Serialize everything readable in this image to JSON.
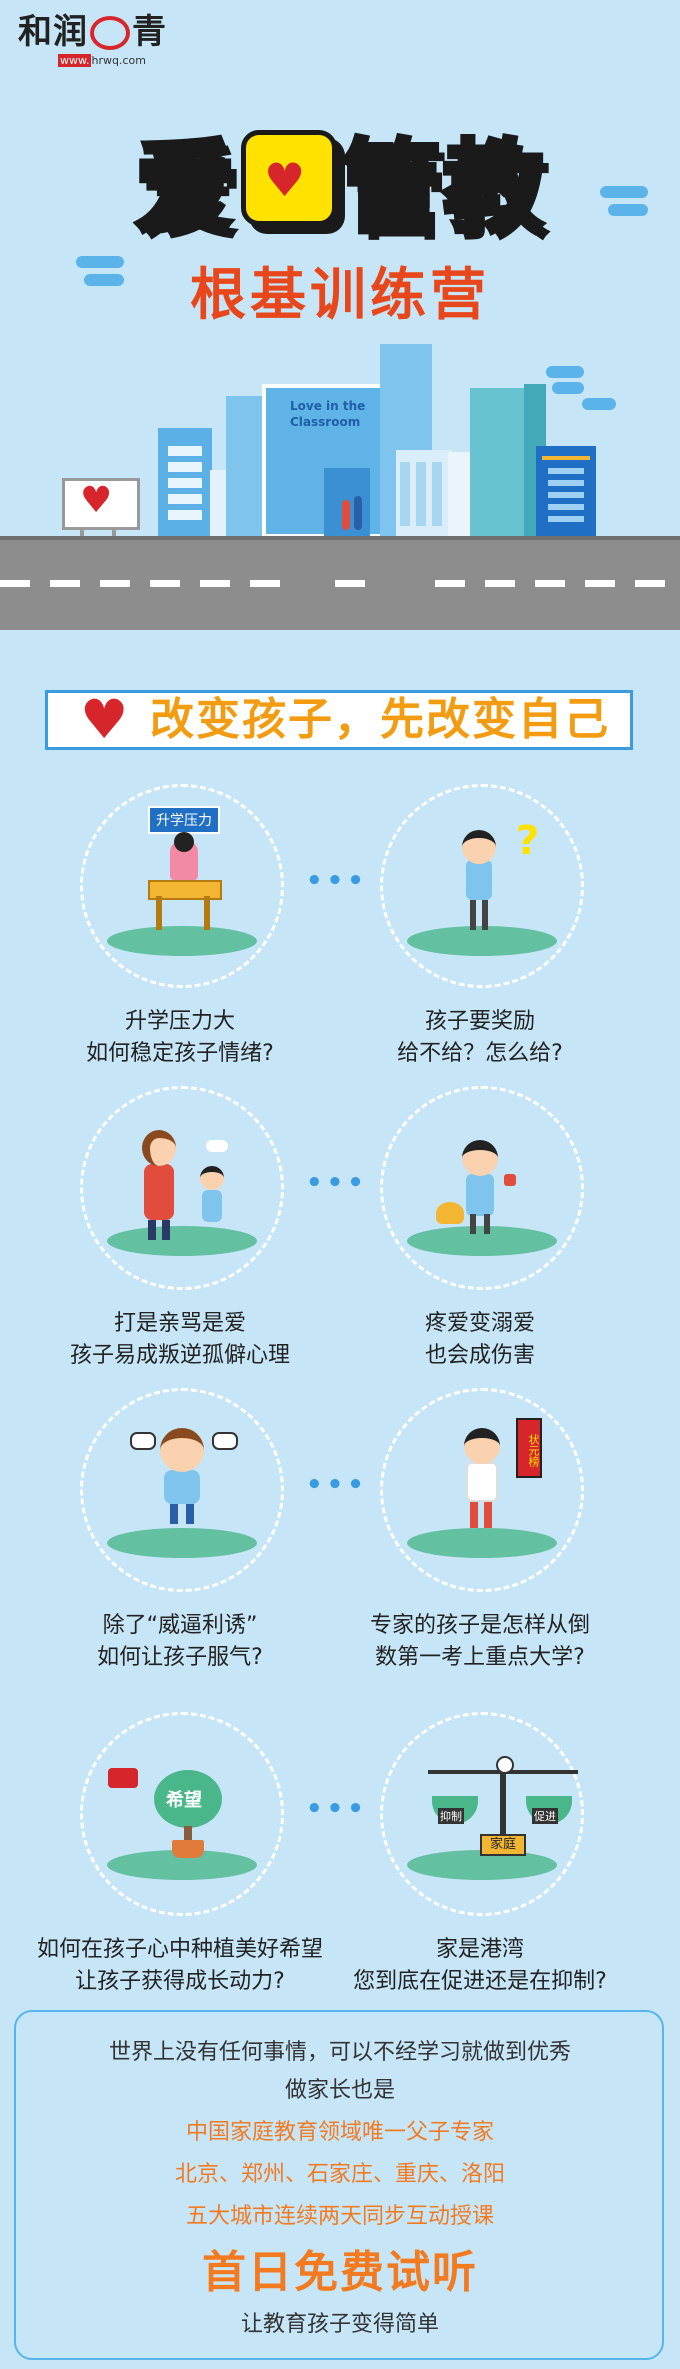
{
  "logo": {
    "brand_left": "和润",
    "brand_right": "青",
    "url_prefix": "www.",
    "url_rest": "hrwq.com"
  },
  "hero": {
    "title": "爱",
    "title_rest": "管教",
    "subtitle": "根基训练营"
  },
  "city": {
    "sign_text_1": "Love in the",
    "sign_text_2": "Classroom"
  },
  "slogan": {
    "text": "改变孩子，先改变自己"
  },
  "topics": [
    {
      "tag": "升学压力",
      "line1": "升学压力大",
      "line2": "如何稳定孩子情绪?"
    },
    {
      "line1": "孩子要奖励",
      "line2": "给不给？怎么给?"
    },
    {
      "line1": "打是亲骂是爱",
      "line2": "孩子易成叛逆孤僻心理"
    },
    {
      "line1": "疼爱变溺爱",
      "line2": "也会成伤害"
    },
    {
      "line1": "除了“威逼利诱”",
      "line2": "如何让孩子服气?"
    },
    {
      "line1": "专家的孩子是怎样从倒",
      "line2": "数第一考上重点大学?",
      "banner": "状元榜"
    },
    {
      "line1": "如何在孩子心中种植美好希望",
      "line2": "让孩子获得成长动力?",
      "tree_label": "希望"
    },
    {
      "line1": "家是港湾",
      "line2": "您到底在促进还是在抑制?",
      "scale_left": "抑制",
      "scale_right": "促进",
      "scale_base": "家庭"
    }
  ],
  "dots_text": "•••",
  "question_mark": "?",
  "closing": {
    "line1": "世界上没有任何事情，可以不经学习就做到优秀",
    "line2": "做家长也是",
    "line3": "中国家庭教育领域唯一父子专家",
    "line4": "北京、郑州、石家庄、重庆、洛阳",
    "line5": "五大城市连续两天同步互动授课",
    "cta": "首日免费试听",
    "footer": "让教育孩子变得简单"
  },
  "colors": {
    "background": "#c6e6f8",
    "title_yellow": "#ffe200",
    "title_orange": "#e8471b",
    "accent_blue": "#3a9be0",
    "highlight_orange": "#f47a20",
    "ground_green": "#63c0a0"
  }
}
